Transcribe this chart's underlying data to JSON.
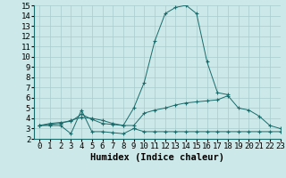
{
  "xlabel": "Humidex (Indice chaleur)",
  "x": [
    0,
    1,
    2,
    3,
    4,
    5,
    6,
    7,
    8,
    9,
    10,
    11,
    12,
    13,
    14,
    15,
    16,
    17,
    18,
    19,
    20,
    21,
    22,
    23
  ],
  "line_peak": [
    3.3,
    3.5,
    3.6,
    3.7,
    4.4,
    3.9,
    3.5,
    3.4,
    3.3,
    5.0,
    7.5,
    11.5,
    14.2,
    14.8,
    15.0,
    14.2,
    9.5,
    6.5,
    6.3,
    null,
    null,
    null,
    null,
    null
  ],
  "line_mid": [
    3.3,
    3.4,
    3.5,
    3.8,
    4.1,
    4.0,
    3.8,
    3.5,
    3.3,
    3.3,
    4.5,
    4.8,
    5.0,
    5.3,
    5.5,
    5.6,
    5.7,
    5.8,
    6.2,
    5.0,
    4.8,
    4.2,
    3.3,
    3.0
  ],
  "line_low": [
    3.3,
    3.3,
    3.3,
    2.5,
    4.8,
    2.7,
    2.7,
    2.6,
    2.5,
    3.0,
    2.7,
    2.7,
    2.7,
    2.7,
    2.7,
    2.7,
    2.7,
    2.7,
    2.7,
    2.7,
    2.7,
    2.7,
    2.7,
    2.7
  ],
  "bg_color": "#cce8e8",
  "line_color": "#1a6b6b",
  "grid_color": "#a8cccc",
  "xlim": [
    -0.5,
    23
  ],
  "ylim": [
    2,
    15
  ],
  "xticks": [
    0,
    1,
    2,
    3,
    4,
    5,
    6,
    7,
    8,
    9,
    10,
    11,
    12,
    13,
    14,
    15,
    16,
    17,
    18,
    19,
    20,
    21,
    22,
    23
  ],
  "yticks": [
    2,
    3,
    4,
    5,
    6,
    7,
    8,
    9,
    10,
    11,
    12,
    13,
    14,
    15
  ],
  "tick_fontsize": 6.5,
  "xlabel_fontsize": 7.5
}
